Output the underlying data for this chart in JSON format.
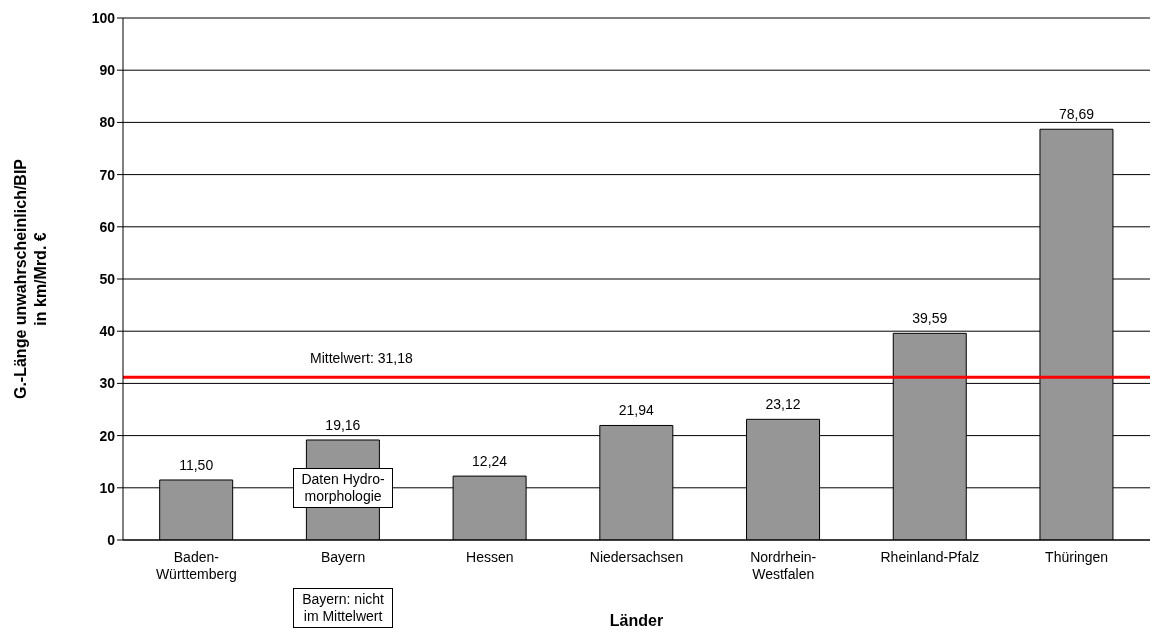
{
  "chart_data": {
    "type": "bar",
    "xlabel": "Länder",
    "ylabel": "G.-Länge unwahrscheinlich/BIP in km/Mrd. €",
    "categories": [
      "Baden-Württemberg",
      "Bayern",
      "Hessen",
      "Niedersachsen",
      "Nordrhein-Westfalen",
      "Rheinland-Pfalz",
      "Thüringen"
    ],
    "values": [
      11.5,
      19.16,
      12.24,
      21.94,
      23.12,
      39.59,
      78.69
    ],
    "value_labels": [
      "11,50",
      "19,16",
      "12,24",
      "21,94",
      "23,12",
      "39,59",
      "78,69"
    ],
    "color": "#969696",
    "ylim": [
      0,
      100
    ],
    "yticks": [
      0,
      10,
      20,
      30,
      40,
      50,
      60,
      70,
      80,
      90,
      100
    ],
    "grid": "y",
    "legend": false,
    "ref_lines": [
      {
        "axis": "y",
        "value": 31.18,
        "label": "Mittelwert: 31,18",
        "color": "#ff0000"
      }
    ],
    "annotations": [
      "Daten Hydro-morphologie",
      "Bayern: nicht im Mittelwert"
    ]
  }
}
